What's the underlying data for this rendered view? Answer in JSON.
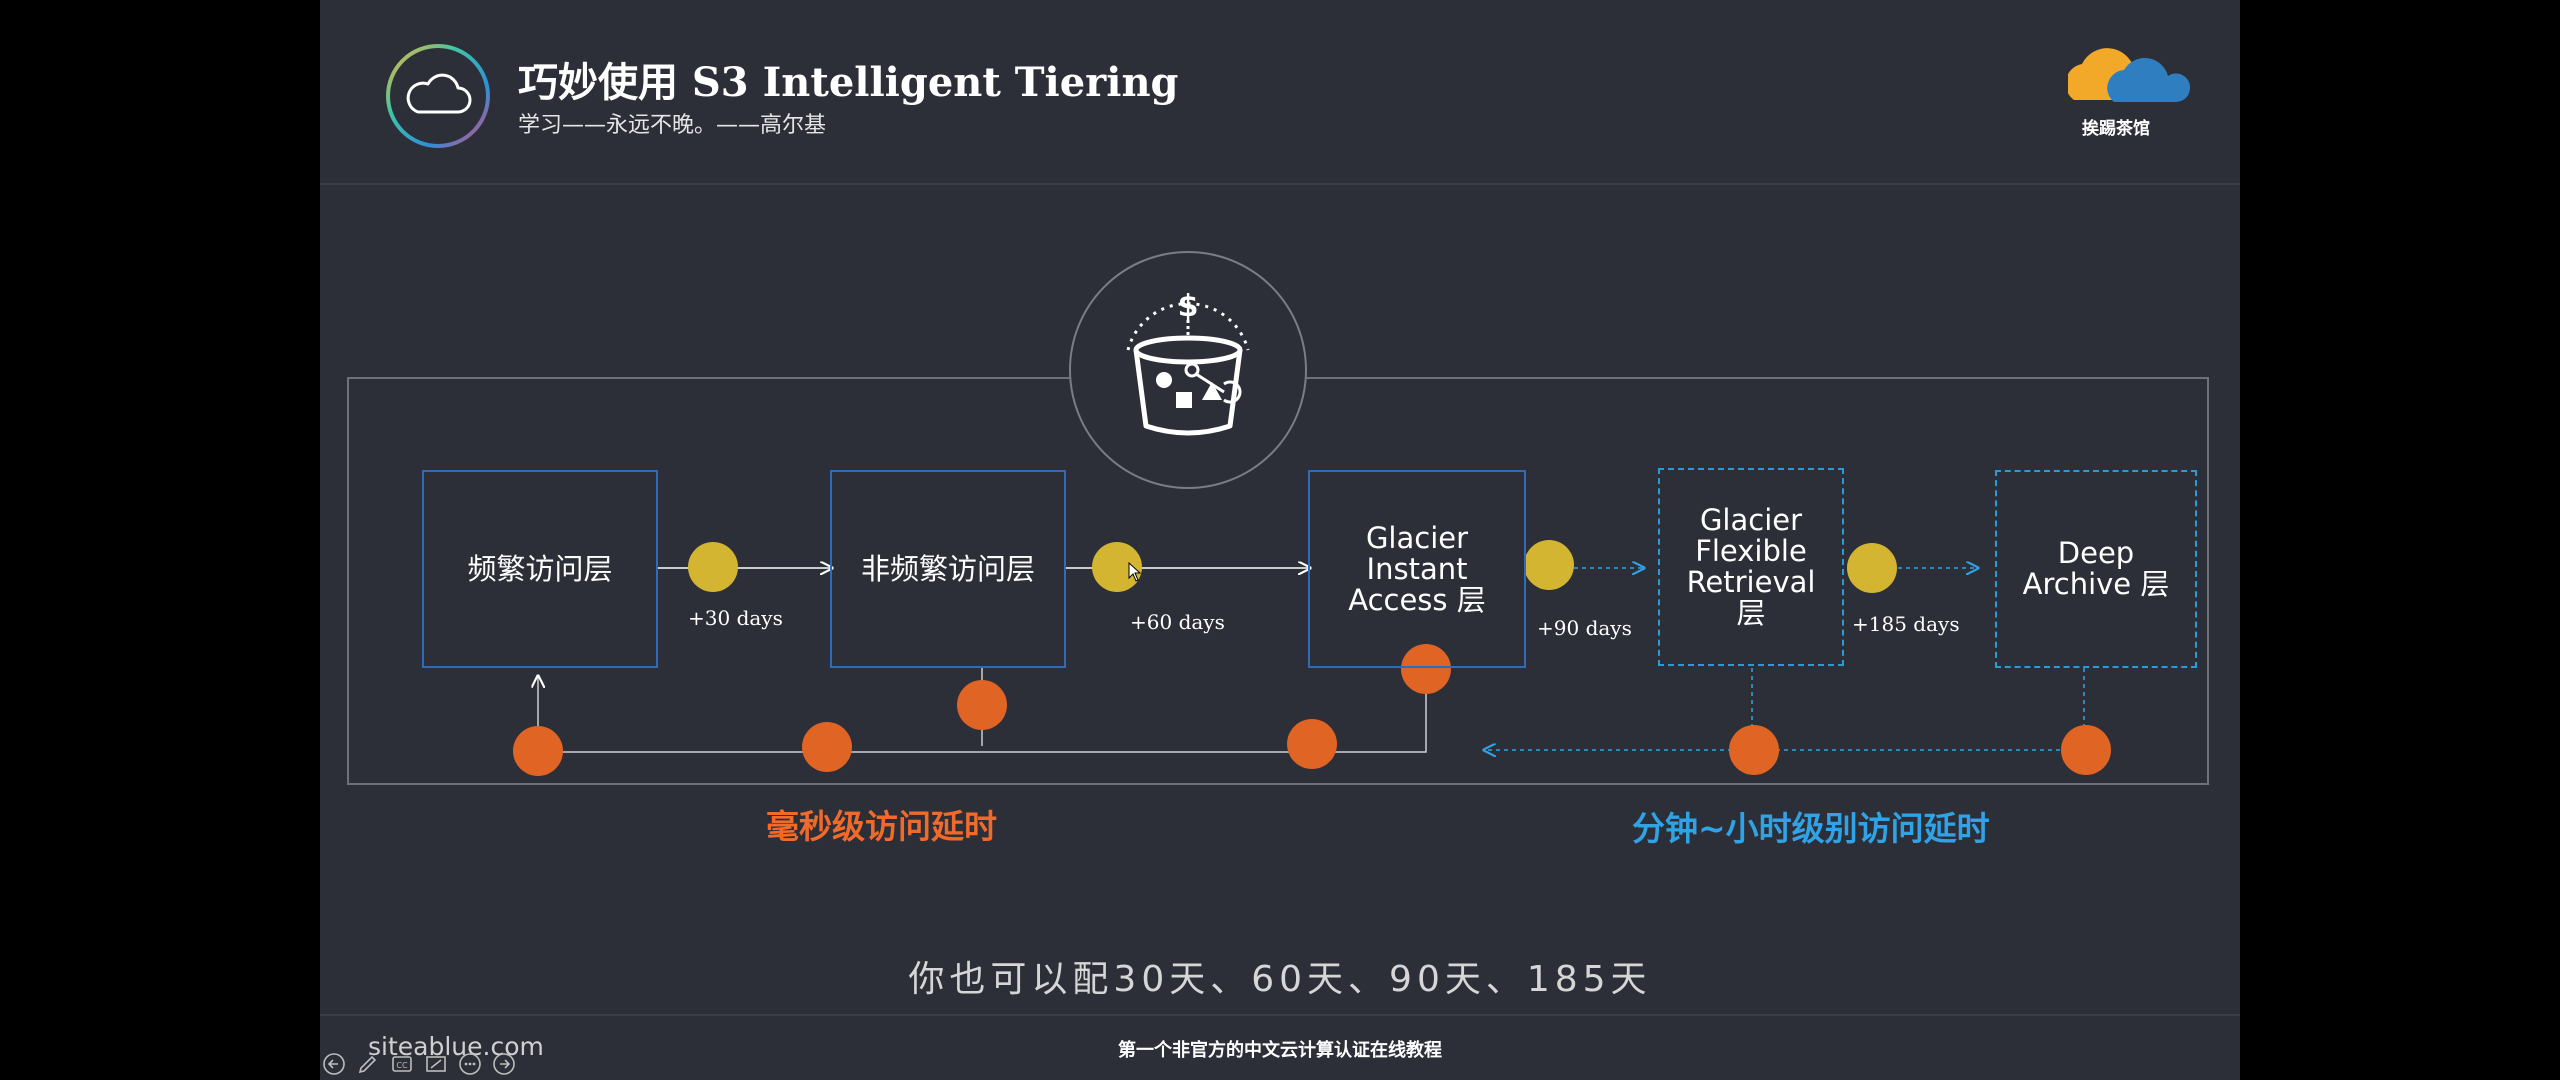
{
  "header": {
    "title": "巧妙使用 S3 Intelligent Tiering",
    "subtitle": "学习——永远不晚。——高尔基",
    "brand": "挨踢茶馆"
  },
  "diagram": {
    "tiers": [
      {
        "label": "频繁访问层"
      },
      {
        "label": "非频繁访问层"
      },
      {
        "label": "Glacier Instant Access 层"
      },
      {
        "label": "Glacier Flexible Retrieval 层"
      },
      {
        "label": "Deep Archive 层"
      }
    ],
    "transitions": [
      "+30 days",
      "+60 days",
      "+90 days",
      "+185 days"
    ],
    "latency_ms": "毫秒级访问延时",
    "latency_min_hour": "分钟~小时级别访问延时"
  },
  "caption": "你也可以配30天、60天、90天、185天",
  "footer": "第一个非官方的中文云计算认证在线教程",
  "watermark": "siteablue.com",
  "colors": {
    "background": "#2d2f38",
    "tier_border": "#2f6bb8",
    "dashed_border": "#2a9bd6",
    "transition_dot": "#d4b532",
    "access_dot": "#e06424",
    "latency_ms_color": "#f06a2a",
    "latency_slow_color": "#2fa3e6"
  },
  "icons": [
    "cloud-icon",
    "bucket-dollar-icon",
    "brand-cloud-logo"
  ]
}
